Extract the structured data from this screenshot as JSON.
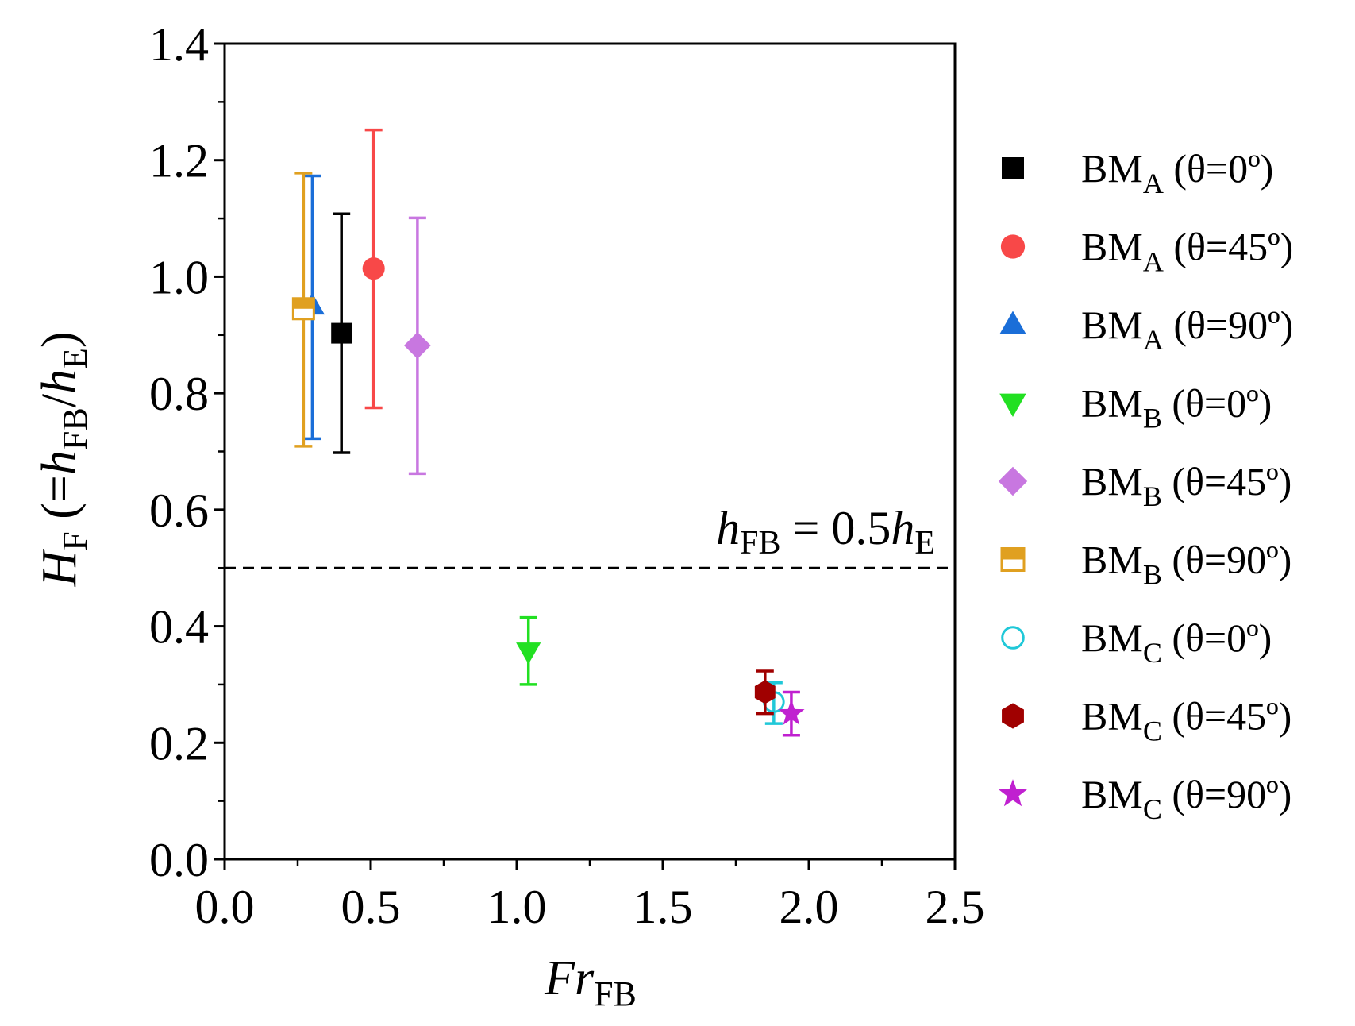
{
  "chart_data": {
    "type": "scatter",
    "xlabel": {
      "main": "Fr",
      "sub": "FB"
    },
    "ylabel": {
      "main": "H",
      "sub": "F",
      "paren_open": " (=",
      "h": "h",
      "sub_fb": "FB",
      "slash": "/",
      "h2": "h",
      "sub_e": "E",
      "paren_close": ")"
    },
    "xlim": [
      0.0,
      2.5
    ],
    "ylim": [
      0.0,
      1.4
    ],
    "xticks": [
      0.0,
      0.5,
      1.0,
      1.5,
      2.0,
      2.5
    ],
    "xtick_labels": [
      "0.0",
      "0.5",
      "1.0",
      "1.5",
      "2.0",
      "2.5"
    ],
    "yticks": [
      0.0,
      0.2,
      0.4,
      0.6,
      0.8,
      1.0,
      1.2,
      1.4
    ],
    "ytick_labels": [
      "0.0",
      "0.2",
      "0.4",
      "0.6",
      "0.8",
      "1.0",
      "1.2",
      "1.4"
    ],
    "reference_line": {
      "y": 0.5,
      "style": "dashed",
      "label": {
        "h": "h",
        "sub_fb": "FB",
        "eq": " = 0.5",
        "h2": "h",
        "sub_e": "E"
      }
    },
    "series": [
      {
        "name": "BM_A (θ=0°)",
        "base": "BM",
        "sub": "A",
        "cond": " (θ=0º)",
        "marker": "square",
        "color": "#000000",
        "x": 0.4,
        "y": 0.903,
        "yerr_low": 0.698,
        "yerr_high": 1.108
      },
      {
        "name": "BM_A (θ=45°)",
        "base": "BM",
        "sub": "A",
        "cond": " (θ=45º)",
        "marker": "circle",
        "color": "#f84848",
        "x": 0.51,
        "y": 1.014,
        "yerr_low": 0.775,
        "yerr_high": 1.252
      },
      {
        "name": "BM_A (θ=90°)",
        "base": "BM",
        "sub": "A",
        "cond": " (θ=90º)",
        "marker": "triangle-up",
        "color": "#1a6ed8",
        "x": 0.3,
        "y": 0.95,
        "yerr_low": 0.722,
        "yerr_high": 1.173
      },
      {
        "name": "BM_B (θ=0°)",
        "base": "BM",
        "sub": "B",
        "cond": " (θ=0º)",
        "marker": "triangle-down",
        "color": "#22e022",
        "x": 1.04,
        "y": 0.357,
        "yerr_low": 0.3,
        "yerr_high": 0.415
      },
      {
        "name": "BM_B (θ=45°)",
        "base": "BM",
        "sub": "B",
        "cond": " (θ=45º)",
        "marker": "diamond",
        "color": "#c877e0",
        "x": 0.66,
        "y": 0.882,
        "yerr_low": 0.662,
        "yerr_high": 1.101
      },
      {
        "name": "BM_B (θ=90°)",
        "base": "BM",
        "sub": "B",
        "cond": " (θ=90º)",
        "marker": "square-half",
        "color": "#e0a020",
        "x": 0.27,
        "y": 0.945,
        "yerr_low": 0.709,
        "yerr_high": 1.178
      },
      {
        "name": "BM_C (θ=0°)",
        "base": "BM",
        "sub": "C",
        "cond": " (θ=0º)",
        "marker": "circle-open",
        "color": "#20c8d8",
        "x": 1.88,
        "y": 0.27,
        "yerr_low": 0.233,
        "yerr_high": 0.303
      },
      {
        "name": "BM_C (θ=45°)",
        "base": "BM",
        "sub": "C",
        "cond": " (θ=45º)",
        "marker": "hexagon",
        "color": "#a00000",
        "x": 1.85,
        "y": 0.287,
        "yerr_low": 0.25,
        "yerr_high": 0.323
      },
      {
        "name": "BM_C (θ=90°)",
        "base": "BM",
        "sub": "C",
        "cond": " (θ=90º)",
        "marker": "star",
        "color": "#c020d0",
        "x": 1.94,
        "y": 0.25,
        "yerr_low": 0.213,
        "yerr_high": 0.287
      }
    ],
    "legend_position": "right"
  }
}
